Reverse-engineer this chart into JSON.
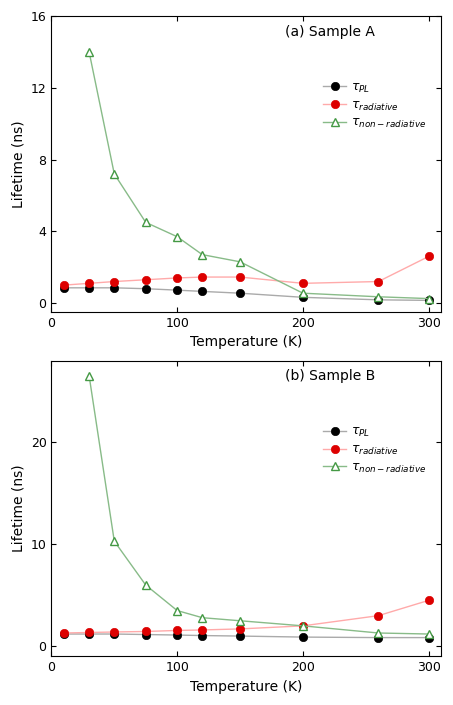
{
  "panel_a": {
    "title": "(a) Sample A",
    "temp": [
      10,
      30,
      50,
      75,
      100,
      120,
      150,
      200,
      260,
      300
    ],
    "tau_PL": [
      0.85,
      0.85,
      0.85,
      0.8,
      0.72,
      0.65,
      0.55,
      0.32,
      0.18,
      0.15
    ],
    "tau_radiative": [
      1.0,
      1.1,
      1.2,
      1.3,
      1.4,
      1.45,
      1.45,
      1.1,
      1.2,
      2.6
    ],
    "tau_nonradiative": [
      null,
      14.0,
      7.2,
      4.5,
      3.7,
      2.7,
      2.3,
      0.55,
      0.35,
      0.25
    ],
    "ylim": [
      -0.5,
      16
    ],
    "yticks": [
      0,
      4,
      8,
      12,
      16
    ]
  },
  "panel_b": {
    "title": "(b) Sample B",
    "temp": [
      10,
      30,
      50,
      75,
      100,
      120,
      150,
      200,
      260,
      300
    ],
    "tau_PL": [
      1.2,
      1.2,
      1.2,
      1.15,
      1.1,
      1.05,
      1.0,
      0.9,
      0.85,
      0.85
    ],
    "tau_radiative": [
      1.3,
      1.35,
      1.4,
      1.45,
      1.55,
      1.6,
      1.7,
      2.0,
      3.0,
      4.5
    ],
    "tau_nonradiative": [
      null,
      26.5,
      10.3,
      6.0,
      3.5,
      2.8,
      2.5,
      2.0,
      1.3,
      1.2
    ],
    "ylim": [
      -1.0,
      28
    ],
    "yticks": [
      0,
      10,
      20
    ]
  },
  "xlabel": "Temperature (K)",
  "ylabel": "Lifetime (ns)",
  "xlim": [
    0,
    310
  ],
  "xticks": [
    0,
    100,
    200,
    300
  ],
  "color_PL_line": "#aaaaaa",
  "color_PL_marker": "#000000",
  "color_rad_line": "#ffaaaa",
  "color_rad_marker": "#dd0000",
  "color_nonrad_line": "#88bb88",
  "color_nonrad_marker": "#449944"
}
